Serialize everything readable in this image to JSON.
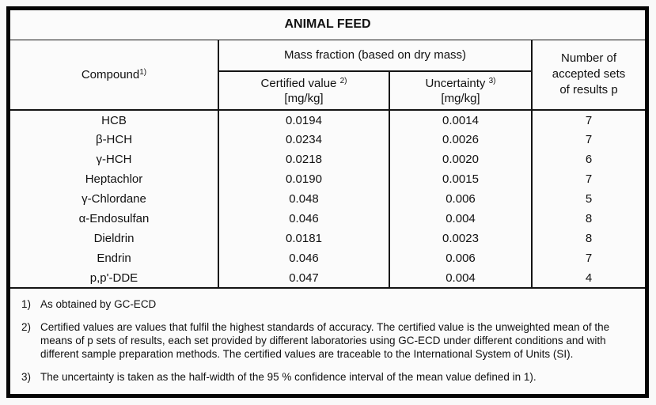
{
  "title": "ANIMAL FEED",
  "header": {
    "compound": {
      "label": "Compound",
      "sup": "1)"
    },
    "mass_fraction_group": "Mass fraction (based on dry mass)",
    "certified": {
      "label": "Certified value",
      "sup": "2)",
      "unit": "[mg/kg]"
    },
    "uncertainty": {
      "label": "Uncertainty",
      "sup": "3)",
      "unit": "[mg/kg]"
    },
    "accepted_sets": {
      "line1": "Number of",
      "line2": "accepted sets",
      "line3": "of results p"
    }
  },
  "rows": [
    {
      "compound": "HCB",
      "certified": "0.0194",
      "uncertainty": "0.0014",
      "p": "7"
    },
    {
      "compound": "β-HCH",
      "certified": "0.0234",
      "uncertainty": "0.0026",
      "p": "7"
    },
    {
      "compound": "γ-HCH",
      "certified": "0.0218",
      "uncertainty": "0.0020",
      "p": "6"
    },
    {
      "compound": "Heptachlor",
      "certified": "0.0190",
      "uncertainty": "0.0015",
      "p": "7"
    },
    {
      "compound": "γ-Chlordane",
      "certified": "0.048",
      "uncertainty": "0.006",
      "p": "5"
    },
    {
      "compound": "α-Endosulfan",
      "certified": "0.046",
      "uncertainty": "0.004",
      "p": "8"
    },
    {
      "compound": "Dieldrin",
      "certified": "0.0181",
      "uncertainty": "0.0023",
      "p": "8"
    },
    {
      "compound": "Endrin",
      "certified": "0.046",
      "uncertainty": "0.006",
      "p": "7"
    },
    {
      "compound": "p,p'-DDE",
      "certified": "0.047",
      "uncertainty": "0.004",
      "p": "4"
    }
  ],
  "footnotes": [
    {
      "marker": "1)",
      "text": "As obtained by GC-ECD"
    },
    {
      "marker": "2)",
      "text": "Certified values are values that fulfil the highest standards of accuracy. The certified value is the unweighted mean of the means of p sets of results, each set provided by different laboratories using GC-ECD under different conditions and with different sample preparation methods. The certified values are traceable to the International System of Units (SI)."
    },
    {
      "marker": "3)",
      "text": "The uncertainty is taken as the half-width of the 95 % confidence interval of the mean value defined in 1)."
    }
  ],
  "colors": {
    "border": "#141414",
    "background": "#fbfbfb",
    "text": "#111111"
  }
}
